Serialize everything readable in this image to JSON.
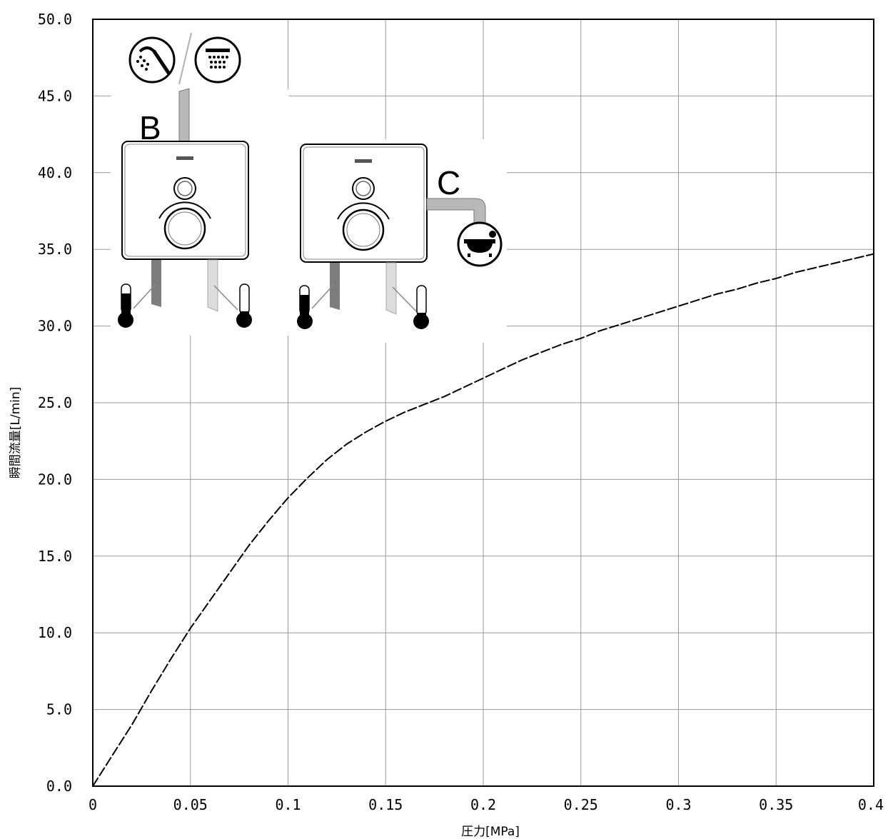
{
  "chart_data": {
    "type": "line",
    "xlabel": "圧力[MPa]",
    "ylabel": "瞬間流量[L/min]",
    "xlim": [
      0,
      0.4
    ],
    "ylim": [
      0,
      50
    ],
    "xticks": [
      0,
      0.05,
      0.1,
      0.15,
      0.2,
      0.25,
      0.3,
      0.35,
      0.4
    ],
    "xtick_labels": [
      "0",
      "0.05",
      "0.1",
      "0.15",
      "0.2",
      "0.25",
      "0.3",
      "0.35",
      "0.4"
    ],
    "yticks": [
      0,
      5,
      10,
      15,
      20,
      25,
      30,
      35,
      40,
      45,
      50
    ],
    "ytick_labels": [
      "0.0",
      "5.0",
      "10.0",
      "15.0",
      "20.0",
      "25.0",
      "30.0",
      "35.0",
      "40.0",
      "45.0",
      "50.0"
    ],
    "grid": true,
    "series": [
      {
        "x": [
          0,
          0.01,
          0.02,
          0.03,
          0.04,
          0.05,
          0.06,
          0.07,
          0.08,
          0.09,
          0.1,
          0.11,
          0.12,
          0.13,
          0.14,
          0.15,
          0.16,
          0.17,
          0.18,
          0.19,
          0.2,
          0.21,
          0.22,
          0.23,
          0.24,
          0.25,
          0.26,
          0.27,
          0.28,
          0.29,
          0.3,
          0.31,
          0.32,
          0.33,
          0.34,
          0.35,
          0.36,
          0.37,
          0.38,
          0.39,
          0.4
        ],
        "y": [
          0,
          2.0,
          4.0,
          6.2,
          8.3,
          10.3,
          12.1,
          13.9,
          15.7,
          17.3,
          18.8,
          20.1,
          21.3,
          22.3,
          23.1,
          23.8,
          24.4,
          24.9,
          25.4,
          26.0,
          26.6,
          27.2,
          27.8,
          28.3,
          28.8,
          29.2,
          29.7,
          30.1,
          30.5,
          30.9,
          31.3,
          31.7,
          32.1,
          32.4,
          32.8,
          33.1,
          33.5,
          33.8,
          34.1,
          34.4,
          34.7
        ]
      }
    ],
    "callouts": [
      "B",
      "C"
    ]
  },
  "icons": [
    "handshower-icon",
    "overhead-shower-icon",
    "bathtub-icon",
    "hot-thermometer-icon",
    "cold-thermometer-icon",
    "thermostat-mixer-icon"
  ],
  "colors": {
    "line": "#000000",
    "grid": "#9a9a9a",
    "pipe_hot": "#8c8c8c",
    "pipe_cold": "#d8d8d8"
  }
}
